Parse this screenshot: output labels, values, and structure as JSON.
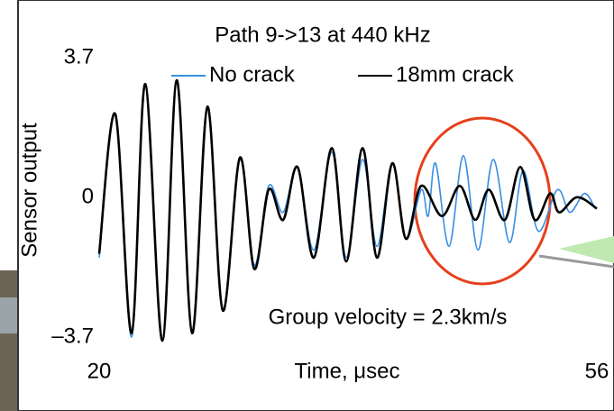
{
  "chart_data": {
    "type": "line",
    "title": "Path 9->13 at 440 kHz",
    "xlabel": "Time, μsec",
    "ylabel": "Sensor output",
    "annotation": "Group velocity = 2.3km/s",
    "xlim": [
      20,
      56
    ],
    "xticks": [
      20,
      56
    ],
    "ylim": [
      -3.7,
      3.7
    ],
    "yticks": [
      {
        "value": -3.7,
        "label": "–3.7"
      },
      0,
      3.7
    ],
    "series": [
      {
        "name": "No crack",
        "color": "#3a8fe0",
        "x": [
          20.0,
          21.17,
          22.35,
          23.33,
          24.57,
          25.61,
          26.72,
          27.83,
          28.94,
          30.18,
          31.22,
          32.26,
          33.31,
          34.35,
          35.53,
          36.83,
          37.87,
          39.05,
          40.09,
          41.2,
          42.18,
          43.3,
          43.8,
          44.33,
          45.31,
          46.35,
          47.4,
          48.5,
          49.68,
          50.66,
          51.77,
          53.14,
          54.05,
          55.1,
          55.88
        ],
        "values": [
          -1.5,
          2.3,
          -3.6,
          3.1,
          -3.7,
          3.2,
          -3.5,
          2.5,
          -2.9,
          1.1,
          -1.7,
          0.4,
          -0.3,
          0.9,
          -1.3,
          1.3,
          -1.5,
          1.1,
          -1.2,
          1.0,
          -1.0,
          0.3,
          -0.4,
          1.0,
          -1.2,
          1.2,
          -1.3,
          1.1,
          -1.1,
          0.8,
          -0.8,
          0.3,
          -0.3,
          0.2,
          -0.2
        ]
      },
      {
        "name": "18mm crack",
        "color": "#000000",
        "x": [
          20.0,
          21.17,
          22.35,
          23.33,
          24.57,
          25.61,
          26.72,
          27.83,
          28.94,
          30.18,
          31.22,
          32.26,
          33.31,
          34.35,
          35.53,
          36.83,
          37.87,
          39.05,
          40.09,
          41.2,
          42.18,
          43.29,
          44.79,
          46.09,
          47.2,
          48.18,
          49.35,
          50.46,
          51.5,
          52.62,
          53.27,
          54.57,
          56.0
        ],
        "values": [
          -1.4,
          2.3,
          -3.5,
          3.1,
          -3.7,
          3.2,
          -3.5,
          2.5,
          -2.9,
          1.15,
          -1.8,
          0.3,
          -0.5,
          0.9,
          -1.5,
          1.4,
          -1.6,
          1.4,
          -1.5,
          1.0,
          -1.0,
          0.4,
          -0.4,
          0.4,
          -0.5,
          0.3,
          -0.5,
          0.9,
          -0.5,
          0.2,
          -0.3,
          0.1,
          -0.2
        ]
      }
    ]
  }
}
